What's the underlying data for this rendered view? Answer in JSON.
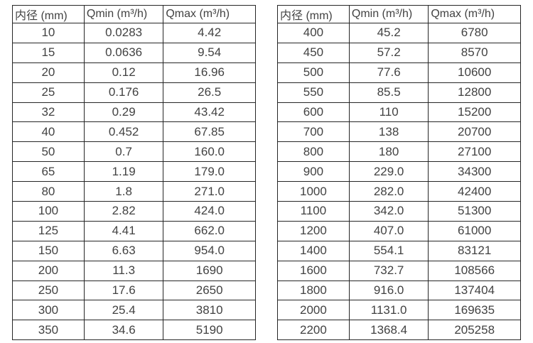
{
  "colors": {
    "background": "#ffffff",
    "border": "#262626",
    "text": "#424242"
  },
  "tables": [
    {
      "name": "flow-spec-table-small-diameters",
      "headers": [
        "内径 (mm)",
        "Qmin (m³/h)",
        "Qmax (m³/h)"
      ],
      "rows": [
        [
          "10",
          "0.0283",
          "4.42"
        ],
        [
          "15",
          "0.0636",
          "9.54"
        ],
        [
          "20",
          "0.12",
          "16.96"
        ],
        [
          "25",
          "0.176",
          "26.5"
        ],
        [
          "32",
          "0.29",
          "43.42"
        ],
        [
          "40",
          "0.452",
          "67.85"
        ],
        [
          "50",
          "0.7",
          "160.0"
        ],
        [
          "65",
          "1.19",
          "179.0"
        ],
        [
          "80",
          "1.8",
          "271.0"
        ],
        [
          "100",
          "2.82",
          "424.0"
        ],
        [
          "125",
          "4.41",
          "662.0"
        ],
        [
          "150",
          "6.63",
          "954.0"
        ],
        [
          "200",
          "11.3",
          "1690"
        ],
        [
          "250",
          "17.6",
          "2650"
        ],
        [
          "300",
          "25.4",
          "3810"
        ],
        [
          "350",
          "34.6",
          "5190"
        ]
      ]
    },
    {
      "name": "flow-spec-table-large-diameters",
      "headers": [
        "内径 (mm)",
        "Qmin (m³/h)",
        "Qmax (m³/h)"
      ],
      "rows": [
        [
          "400",
          "45.2",
          "6780"
        ],
        [
          "450",
          "57.2",
          "8570"
        ],
        [
          "500",
          "77.6",
          "10600"
        ],
        [
          "550",
          "85.5",
          "12800"
        ],
        [
          "600",
          "110",
          "15200"
        ],
        [
          "700",
          "138",
          "20700"
        ],
        [
          "800",
          "180",
          "27100"
        ],
        [
          "900",
          "229.0",
          "34300"
        ],
        [
          "1000",
          "282.0",
          "42400"
        ],
        [
          "1100",
          "342.0",
          "51300"
        ],
        [
          "1200",
          "407.0",
          "61000"
        ],
        [
          "1400",
          "554.1",
          "83121"
        ],
        [
          "1600",
          "732.7",
          "108566"
        ],
        [
          "1800",
          "916.0",
          "137404"
        ],
        [
          "2000",
          "1131.0",
          "169635"
        ],
        [
          "2200",
          "1368.4",
          "205258"
        ]
      ]
    }
  ]
}
